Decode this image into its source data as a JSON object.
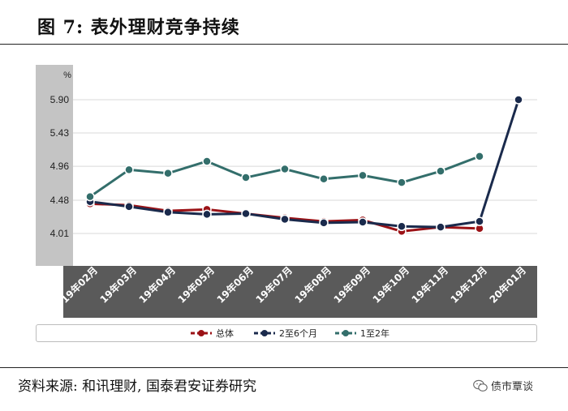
{
  "figure_title": "图 7:  表外理财竞争持续",
  "source_note": "资料来源: 和讯理财, 国泰君安证券研究",
  "watermark_text": "债市覃谈",
  "watermark_icon": "wechat-icon",
  "colors": {
    "series_total": "#9b1216",
    "series_2to6m": "#1a2a4c",
    "series_1to2y": "#336e6b",
    "plot_band": "#c4c4c4",
    "x_axis_band": "#5a5a5a",
    "gridline": "#d9d9d9"
  },
  "chart_data": {
    "type": "line",
    "title": "表外理财竞争持续",
    "y_unit_label": "%",
    "ylim": [
      3.6,
      6.1
    ],
    "y_ticks": [
      "4.01",
      "4.48",
      "4.96",
      "5.43",
      "5.90"
    ],
    "categories": [
      "19年02月",
      "19年03月",
      "19年04月",
      "19年05月",
      "19年06月",
      "19年07月",
      "19年08月",
      "19年09月",
      "19年10月",
      "19年11月",
      "19年12月",
      "20年01月"
    ],
    "grid": true,
    "legend_position": "bottom",
    "series": [
      {
        "name": "总体",
        "color": "#9b1216",
        "values": [
          4.43,
          4.41,
          4.33,
          4.35,
          4.29,
          4.23,
          4.18,
          4.2,
          4.04,
          4.1,
          4.08,
          null
        ]
      },
      {
        "name": "2至6个月",
        "color": "#1a2a4c",
        "values": [
          4.46,
          4.39,
          4.31,
          4.28,
          4.29,
          4.21,
          4.16,
          4.17,
          4.11,
          4.1,
          4.18,
          5.9
        ]
      },
      {
        "name": "1至2年",
        "color": "#336e6b",
        "values": [
          4.53,
          4.91,
          4.86,
          5.03,
          4.8,
          4.92,
          4.78,
          4.83,
          4.73,
          4.89,
          5.1,
          null
        ]
      }
    ]
  }
}
